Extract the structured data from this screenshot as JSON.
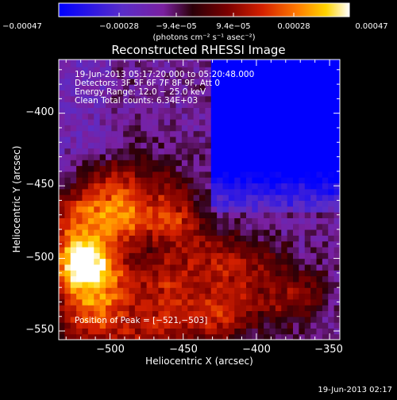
{
  "chart_data": {
    "type": "heatmap",
    "title": "Reconstructed RHESSI Image",
    "xlabel": "Heliocentric X (arcsec)",
    "ylabel": "Heliocentric Y (arcsec)",
    "xlim": [
      -535,
      -343
    ],
    "ylim": [
      -556,
      -363
    ],
    "x_ticks": [
      -500,
      -450,
      -400,
      -350
    ],
    "y_ticks": [
      -550,
      -500,
      -450,
      -400
    ],
    "x_tick_labels": [
      "−500",
      "−450",
      "−400",
      "−350"
    ],
    "y_tick_labels": [
      "−550",
      "−500",
      "−450",
      "−400"
    ],
    "colorbar": {
      "min": -0.00047,
      "max": 0.00047,
      "colors": [
        "#0000ff",
        "#5a2dc8",
        "#7a20a0",
        "#2a0008",
        "#7a0000",
        "#d42000",
        "#ff7a00",
        "#ffd400",
        "#ffffff"
      ],
      "tick_labels": [
        "−0.00047",
        "−0.00028",
        "−9.4e−05",
        "9.4e−05",
        "0.00028",
        "0.00047"
      ],
      "unit_label": "(photons cm⁻² s⁻¹ asec⁻²)"
    },
    "annotations": [
      "19-Jun-2013 05:17:20.000 to 05:20:48.000",
      "Detectors: 3F 5F 6F 7F 8F 9F, Att 0",
      "Energy Range: 12.0 − 25.0 keV",
      "Clean    Total counts: 6.34E+03"
    ],
    "peak_label": "Position of Peak = [−521,−503]",
    "peak": [
      -521,
      -503
    ],
    "footer": "19-Jun-2013 02:17"
  }
}
